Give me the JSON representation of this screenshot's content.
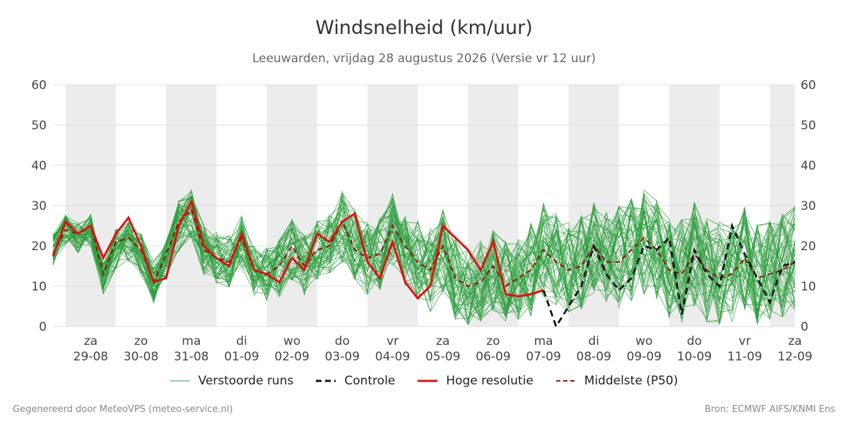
{
  "title": "Windsnelheid (km/uur)",
  "subtitle": "Leeuwarden, vrijdag 28 augustus 2026 (Versie vr 12 uur)",
  "footer_left": "Gegenereerd door MeteoVPS (meteo-service.nl)",
  "footer_right": "Bron: ECMWF AIFS/KNMI Ens",
  "legend": {
    "members": "Verstoorde runs",
    "control": "Controle",
    "hires": "Hoge resolutie",
    "median": "Middelste (P50)"
  },
  "colors": {
    "members": "#2e9e3e",
    "control": "#111111",
    "hires": "#dd1111",
    "median": "#8b1a0a",
    "weekend_band": "#ececec",
    "grid": "#dddddd"
  },
  "chart_data": {
    "type": "line",
    "ylim": [
      0,
      60
    ],
    "yticks": [
      0,
      10,
      20,
      30,
      40,
      50,
      60
    ],
    "xlim": [
      -0.25,
      14.5
    ],
    "grid": true,
    "legend_position": "bottom",
    "x_ticks": [
      {
        "day": "za",
        "date": "29-08"
      },
      {
        "day": "zo",
        "date": "30-08"
      },
      {
        "day": "ma",
        "date": "31-08"
      },
      {
        "day": "di",
        "date": "01-09"
      },
      {
        "day": "wo",
        "date": "02-09"
      },
      {
        "day": "do",
        "date": "03-09"
      },
      {
        "day": "vr",
        "date": "04-09"
      },
      {
        "day": "za",
        "date": "05-09"
      },
      {
        "day": "zo",
        "date": "06-09"
      },
      {
        "day": "ma",
        "date": "07-09"
      },
      {
        "day": "di",
        "date": "08-09"
      },
      {
        "day": "wo",
        "date": "09-09"
      },
      {
        "day": "do",
        "date": "10-09"
      },
      {
        "day": "vr",
        "date": "11-09"
      },
      {
        "day": "za",
        "date": "12-09"
      }
    ],
    "shaded_days": [
      0,
      2,
      4,
      6,
      8,
      10,
      12,
      14
    ],
    "x_start_day_offset": -0.25,
    "step_days": 0.25,
    "median": [
      18,
      24,
      23,
      25,
      13,
      21,
      22,
      19,
      11,
      18,
      26,
      29,
      19,
      17,
      16,
      22,
      14,
      13,
      15,
      20,
      15,
      19,
      20,
      26,
      19,
      17,
      18,
      25,
      20,
      16,
      14,
      20,
      12,
      10,
      11,
      15,
      10,
      12,
      14,
      19,
      16,
      14,
      15,
      20,
      16,
      16,
      19,
      22,
      19,
      14,
      13,
      18,
      14,
      12,
      13,
      17,
      12,
      13,
      14,
      16
    ],
    "hires": [
      17.5,
      26,
      23,
      25,
      17,
      23,
      27,
      20,
      11,
      12,
      25,
      31,
      20,
      17,
      15,
      23,
      14,
      13,
      11,
      17,
      14,
      23,
      21,
      26,
      28,
      16,
      12,
      21,
      11,
      7,
      10,
      25,
      22,
      19,
      14,
      21,
      8,
      7.5,
      8,
      9
    ],
    "control": [
      null,
      null,
      null,
      null,
      null,
      null,
      null,
      null,
      null,
      null,
      null,
      null,
      null,
      null,
      null,
      null,
      null,
      null,
      null,
      null,
      null,
      null,
      null,
      null,
      null,
      null,
      null,
      null,
      null,
      null,
      null,
      null,
      null,
      null,
      null,
      null,
      null,
      null,
      null,
      9,
      0,
      5,
      10,
      20,
      13,
      9,
      12,
      20,
      19,
      22,
      3,
      19,
      13,
      10,
      25,
      18,
      12,
      6,
      15,
      16
    ],
    "member_count": 50,
    "member_base": [
      19,
      24,
      22,
      24,
      12,
      19,
      21,
      18,
      11,
      17,
      25,
      28,
      19,
      17,
      16,
      21,
      14,
      13,
      15,
      19,
      15,
      19,
      20,
      25,
      20,
      17,
      18,
      24,
      19,
      16,
      14,
      19,
      12,
      10,
      11,
      14,
      11,
      12,
      14,
      19,
      17,
      15,
      16,
      20,
      17,
      17,
      19,
      21,
      19,
      15,
      14,
      18,
      14,
      13,
      14,
      17,
      13,
      14,
      15,
      17
    ],
    "member_spread": [
      3,
      3,
      3,
      3,
      3,
      4,
      4,
      4,
      4,
      4,
      5,
      5,
      5,
      5,
      5,
      5,
      5,
      5,
      6,
      6,
      6,
      6,
      6,
      7,
      7,
      7,
      7,
      7,
      7,
      8,
      8,
      8,
      8,
      8,
      8,
      8,
      8,
      8,
      9,
      9,
      9,
      9,
      9,
      9,
      9,
      10,
      10,
      10,
      10,
      10,
      10,
      10,
      10,
      10,
      10,
      10,
      10,
      10,
      10,
      10
    ]
  }
}
